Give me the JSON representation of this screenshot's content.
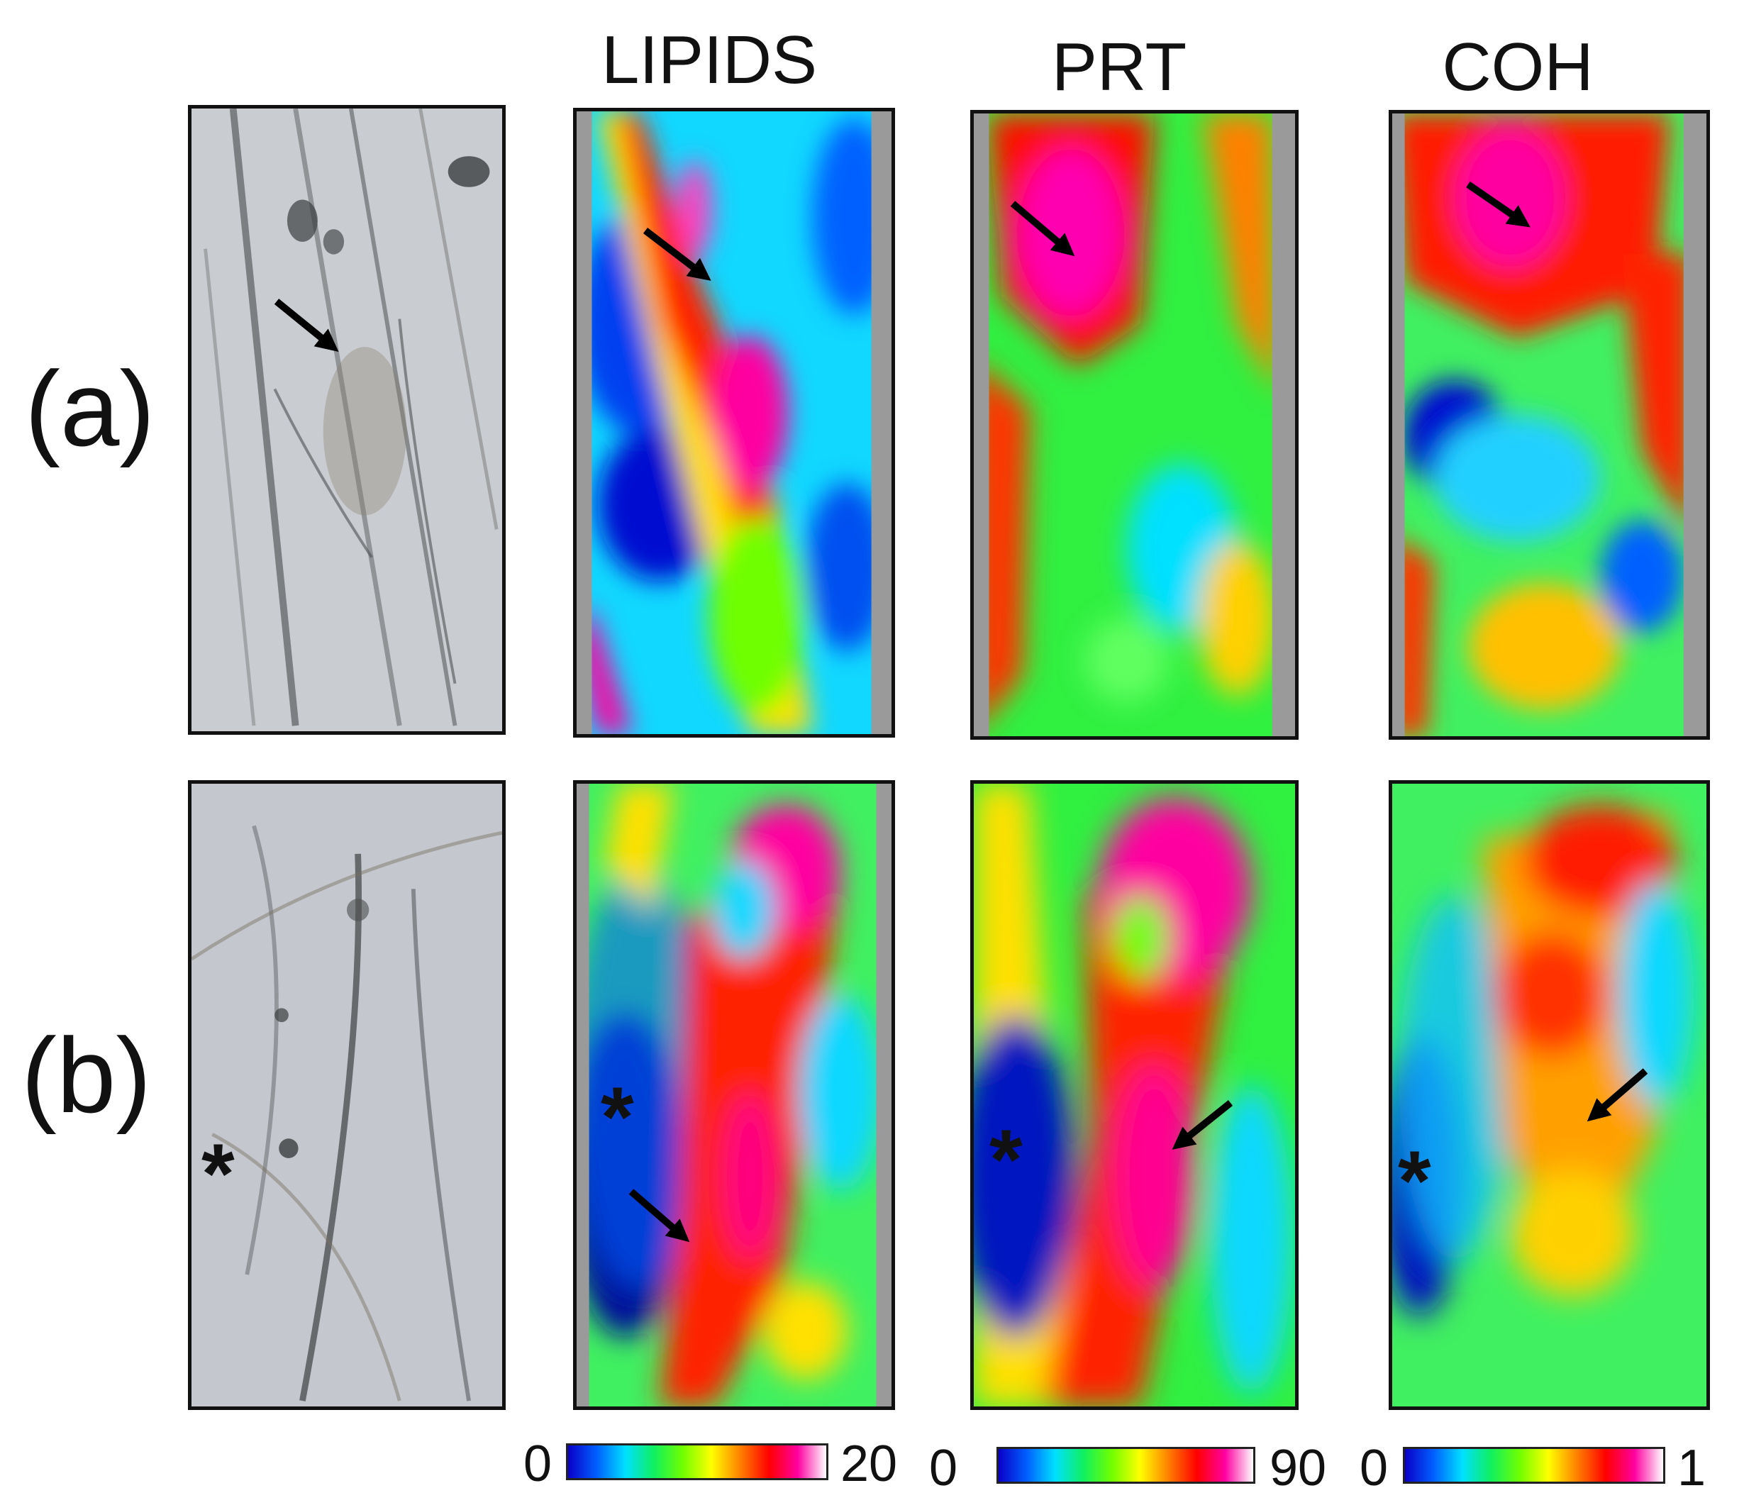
{
  "columns": [
    {
      "key": "optical",
      "title": ""
    },
    {
      "key": "lipids",
      "title": "LIPIDS"
    },
    {
      "key": "prt",
      "title": "PRT"
    },
    {
      "key": "coh",
      "title": "COH"
    }
  ],
  "rows": [
    {
      "label": "(a)"
    },
    {
      "label": "(b)"
    }
  ],
  "markers": {
    "asterisk": "*"
  },
  "colorbars": [
    {
      "name": "lipids",
      "min": "0",
      "max": "20"
    },
    {
      "name": "prt",
      "min": "0",
      "max": "90"
    },
    {
      "name": "coh",
      "min": "0",
      "max": "1"
    }
  ],
  "colorscale": [
    "#0a00c8",
    "#0060ff",
    "#00e0ff",
    "#10f060",
    "#70ff00",
    "#ffff00",
    "#ff8000",
    "#ff0000",
    "#ff00a0",
    "#ffffff"
  ]
}
